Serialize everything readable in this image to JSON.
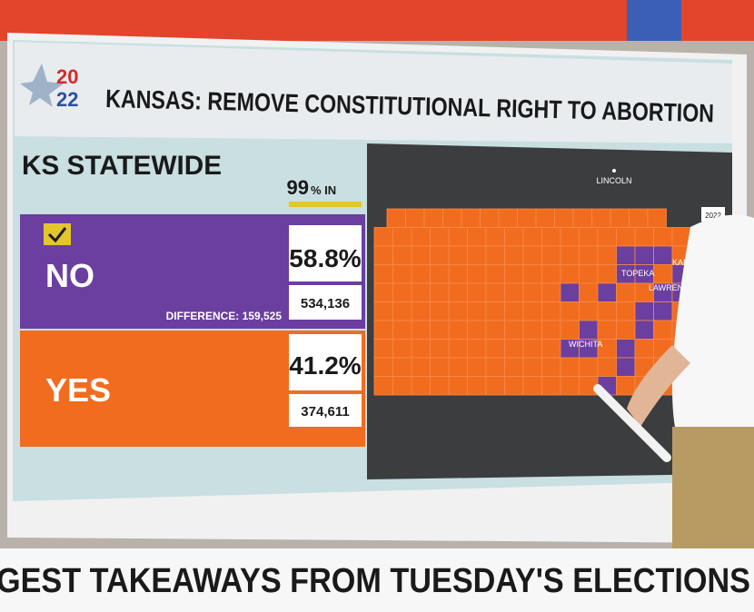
{
  "header": {
    "logo_top": "20",
    "logo_bottom": "22",
    "title": "KANSAS: REMOVE CONSTITUTIONAL RIGHT TO ABORTION"
  },
  "results": {
    "region": "KS STATEWIDE",
    "reporting": "99",
    "reporting_suffix": "% IN",
    "choices": [
      {
        "label": "NO",
        "percent": "58.8%",
        "votes": "534,136",
        "difference": "DIFFERENCE: 159,525"
      },
      {
        "label": "YES",
        "percent": "41.2%",
        "votes": "374,611"
      }
    ]
  },
  "map": {
    "labels": [
      "LINCOLN",
      "TOPEKA",
      "KANSAS",
      "LAWRENCE",
      "WICHITA"
    ],
    "badge": "2022"
  },
  "ticker": {
    "text": "GEST TAKEAWAYS FROM TUESDAY'S ELECTIONS"
  }
}
